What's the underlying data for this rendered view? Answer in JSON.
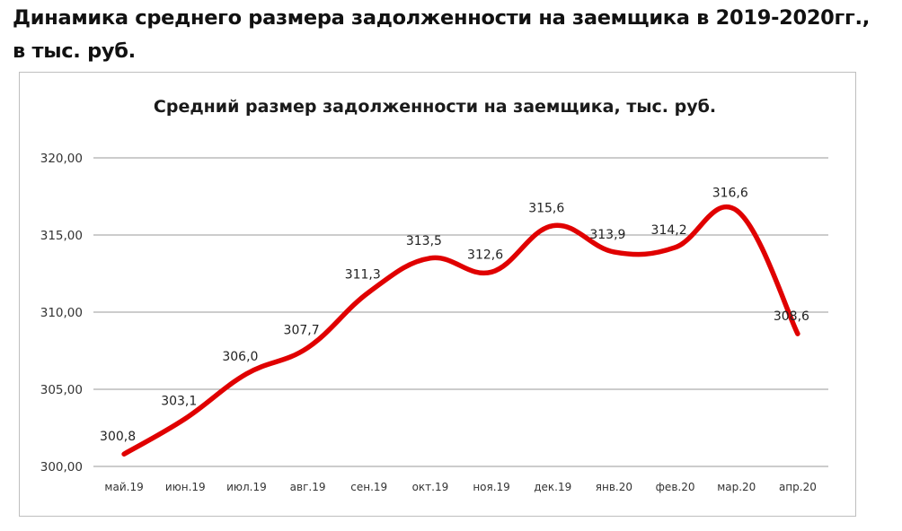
{
  "heading": {
    "line1": "Динамика среднего размера задолженности на заемщика в 2019-2020гг.,",
    "line2": "в тыс. руб."
  },
  "chart_data": {
    "type": "line",
    "title": "Средний размер задолженности на заемщика,  тыс. руб.",
    "categories": [
      "май.19",
      "июн.19",
      "июл.19",
      "авг.19",
      "сен.19",
      "окт.19",
      "ноя.19",
      "дек.19",
      "янв.20",
      "фев.20",
      "мар.20",
      "апр.20"
    ],
    "series": [
      {
        "values": [
          300.8,
          303.1,
          306.0,
          307.7,
          311.3,
          313.5,
          312.6,
          315.6,
          313.9,
          314.2,
          316.6,
          308.6
        ],
        "labels": [
          "300,8",
          "303,1",
          "306,0",
          "307,7",
          "311,3",
          "313,5",
          "312,6",
          "315,6",
          "313,9",
          "314,2",
          "316,6",
          "308,6"
        ],
        "color": "#e00000"
      }
    ],
    "y_ticks": [
      300,
      305,
      310,
      315,
      320
    ],
    "y_tick_labels": [
      "300,00",
      "305,00",
      "310,00",
      "315,00",
      "320,00"
    ],
    "ylim": [
      300,
      320
    ],
    "grid": true,
    "legend": "none"
  }
}
